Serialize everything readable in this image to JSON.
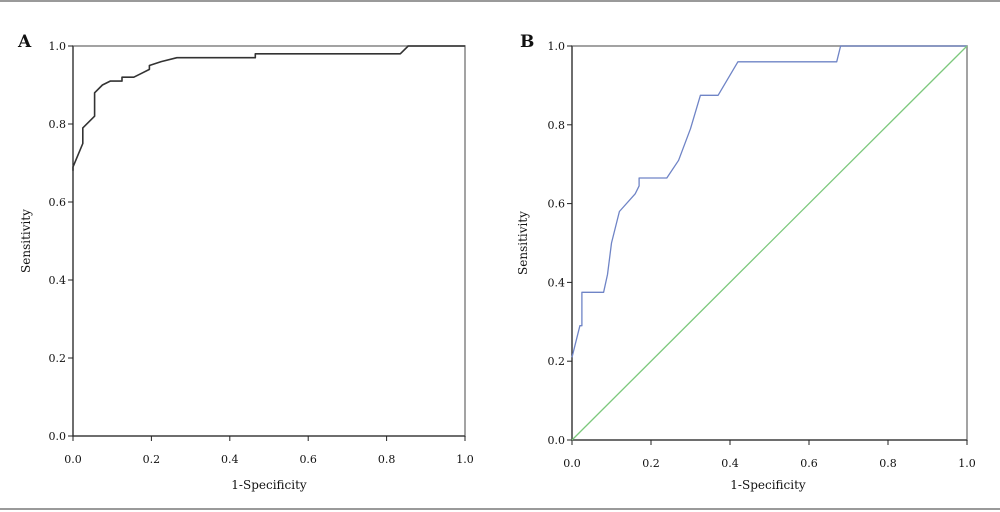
{
  "chart_data": [
    {
      "panel": "A",
      "type": "line",
      "xlabel": "1-Specificity",
      "ylabel": "Sensitivity",
      "xlim": [
        0,
        1
      ],
      "ylim": [
        0,
        1
      ],
      "x_ticks": [
        "0.0",
        "0.2",
        "0.4",
        "0.6",
        "0.8",
        "1.0"
      ],
      "y_ticks": [
        "0.0",
        "0.2",
        "0.4",
        "0.6",
        "0.8",
        "1.0"
      ],
      "series": [
        {
          "color": "#333333",
          "x": [
            0,
            0,
            0.025,
            0.025,
            0.055,
            0.055,
            0.075,
            0.095,
            0.125,
            0.125,
            0.155,
            0.175,
            0.195,
            0.195,
            0.225,
            0.265,
            0.465,
            0.465,
            0.835,
            0.855,
            1.0
          ],
          "y": [
            0.68,
            0.69,
            0.75,
            0.79,
            0.82,
            0.88,
            0.9,
            0.91,
            0.91,
            0.92,
            0.92,
            0.93,
            0.94,
            0.95,
            0.96,
            0.97,
            0.97,
            0.98,
            0.98,
            1.0,
            1.0
          ]
        }
      ]
    },
    {
      "panel": "B",
      "type": "line",
      "xlabel": "1-Specificity",
      "ylabel": "Sensitivity",
      "xlim": [
        0,
        1
      ],
      "ylim": [
        0,
        1
      ],
      "x_ticks": [
        "0.0",
        "0.2",
        "0.4",
        "0.6",
        "0.8",
        "1.0"
      ],
      "y_ticks": [
        "0.0",
        "0.2",
        "0.4",
        "0.6",
        "0.8",
        "1.0"
      ],
      "series": [
        {
          "color": "#6f84c6",
          "x": [
            0,
            0.02,
            0.025,
            0.025,
            0.08,
            0.09,
            0.095,
            0.1,
            0.12,
            0.16,
            0.17,
            0.17,
            0.24,
            0.27,
            0.3,
            0.325,
            0.33,
            0.37,
            0.42,
            0.42,
            0.67,
            0.68,
            1.0
          ],
          "y": [
            0.21,
            0.29,
            0.29,
            0.375,
            0.375,
            0.42,
            0.46,
            0.5,
            0.58,
            0.625,
            0.645,
            0.665,
            0.665,
            0.71,
            0.79,
            0.875,
            0.875,
            0.875,
            0.96,
            0.96,
            0.96,
            1.0,
            1.0
          ]
        },
        {
          "color": "#7cc87c",
          "x": [
            0,
            1
          ],
          "y": [
            0,
            1
          ]
        }
      ]
    }
  ]
}
